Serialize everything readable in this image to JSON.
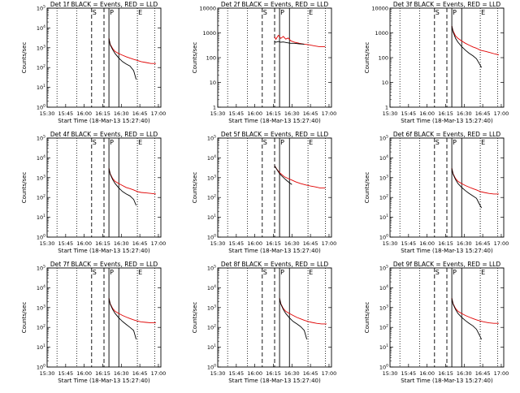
{
  "figure": {
    "xlabel": "Start Time (18-Mar-13 15:27:40)",
    "ylabel": "Counts/sec",
    "x_ticks": [
      "15:30",
      "15:45",
      "16:00",
      "16:15",
      "16:30",
      "16:45",
      "17:00"
    ],
    "x_tick_minutes": [
      0,
      15,
      30,
      45,
      60,
      75,
      90
    ],
    "colors": {
      "events": "#000000",
      "lld": "#e00000",
      "axes": "#000000"
    },
    "markers": {
      "S": "S",
      "P": "P",
      "E": "E"
    }
  },
  "chart_data": [
    {
      "type": "line",
      "title": "Det 1f BLACK = Events, RED = LLD",
      "y_scale": "log",
      "ylim": [
        1,
        100000
      ],
      "y_ticks": [
        1,
        10,
        100,
        1000,
        10000,
        100000
      ],
      "y_tick_labels": [
        "10^0",
        "10^1",
        "10^2",
        "10^3",
        "10^4",
        "10^5"
      ],
      "x_range_minutes": [
        0,
        92
      ],
      "lines": {
        "S_dashed": 36,
        "dashed": 46,
        "P_solid": 50,
        "solid": 58,
        "E_dotted": 73
      },
      "dotted_grid": [
        8,
        24,
        87
      ],
      "series": [
        {
          "name": "Events",
          "x": [
            50,
            51,
            53,
            55,
            58,
            61,
            64,
            67,
            70,
            72
          ],
          "y": [
            3000,
            1400,
            800,
            500,
            300,
            200,
            150,
            120,
            70,
            25
          ]
        },
        {
          "name": "LLD",
          "x": [
            50,
            51,
            53,
            55,
            58,
            61,
            64,
            67,
            70,
            73,
            76,
            80,
            84,
            88
          ],
          "y": [
            3000,
            1500,
            900,
            650,
            500,
            420,
            350,
            300,
            260,
            230,
            200,
            180,
            160,
            160
          ]
        }
      ]
    },
    {
      "type": "line",
      "title": "Det 2f BLACK = Events, RED = LLD",
      "y_scale": "log",
      "ylim": [
        1,
        10000
      ],
      "y_ticks": [
        1,
        10,
        100,
        1000,
        10000
      ],
      "y_tick_labels": [
        "1",
        "10",
        "100",
        "1000",
        "10000"
      ],
      "x_range_minutes": [
        0,
        92
      ],
      "lines": {
        "S_dashed": 36,
        "dashed": 46,
        "P_solid": 50,
        "solid": 58,
        "E_dotted": 73
      },
      "dotted_grid": [
        8,
        24,
        87
      ],
      "series": [
        {
          "name": "Events",
          "x": [
            46,
            47,
            49,
            51,
            53,
            56,
            59,
            62,
            66,
            70
          ],
          "y": [
            450,
            420,
            450,
            420,
            430,
            400,
            380,
            380,
            360,
            350
          ]
        },
        {
          "name": "LLD",
          "x": [
            46,
            47,
            49,
            51,
            53,
            55,
            57,
            59,
            62,
            66,
            70,
            74,
            78,
            82,
            87
          ],
          "y": [
            700,
            550,
            800,
            600,
            720,
            560,
            620,
            480,
            420,
            380,
            350,
            330,
            300,
            280,
            280
          ]
        }
      ]
    },
    {
      "type": "line",
      "title": "Det 3f BLACK = Events, RED = LLD",
      "y_scale": "log",
      "ylim": [
        1,
        10000
      ],
      "y_ticks": [
        1,
        10,
        100,
        1000,
        10000
      ],
      "y_tick_labels": [
        "1",
        "10",
        "100",
        "1000",
        "10000"
      ],
      "x_range_minutes": [
        0,
        92
      ],
      "lines": {
        "S_dashed": 36,
        "dashed": 46,
        "P_solid": 50,
        "solid": 58,
        "E_dotted": 73
      },
      "dotted_grid": [
        8,
        24,
        87
      ],
      "series": [
        {
          "name": "Events",
          "x": [
            50,
            51,
            53,
            55,
            58,
            61,
            64,
            67,
            70,
            72,
            74
          ],
          "y": [
            1900,
            1100,
            600,
            420,
            280,
            200,
            150,
            120,
            90,
            60,
            40
          ]
        },
        {
          "name": "LLD",
          "x": [
            50,
            51,
            53,
            55,
            58,
            61,
            64,
            67,
            70,
            73,
            77,
            81,
            85,
            88
          ],
          "y": [
            1900,
            1200,
            750,
            600,
            470,
            380,
            320,
            270,
            240,
            200,
            180,
            160,
            140,
            130
          ]
        }
      ]
    },
    {
      "type": "line",
      "title": "Det 4f BLACK = Events, RED = LLD",
      "y_scale": "log",
      "ylim": [
        1,
        100000
      ],
      "y_ticks": [
        1,
        10,
        100,
        1000,
        10000,
        100000
      ],
      "y_tick_labels": [
        "10^0",
        "10^1",
        "10^2",
        "10^3",
        "10^4",
        "10^5"
      ],
      "x_range_minutes": [
        0,
        92
      ],
      "lines": {
        "S_dashed": 36,
        "dashed": 46,
        "P_solid": 50,
        "solid": 58,
        "E_dotted": 73
      },
      "dotted_grid": [
        8,
        24,
        87
      ],
      "series": [
        {
          "name": "Events",
          "x": [
            50,
            51,
            53,
            55,
            58,
            61,
            64,
            67,
            70,
            72
          ],
          "y": [
            3000,
            1500,
            800,
            500,
            300,
            200,
            150,
            120,
            80,
            40
          ]
        },
        {
          "name": "LLD",
          "x": [
            50,
            51,
            53,
            55,
            58,
            61,
            64,
            67,
            70,
            73,
            76,
            80,
            84,
            88
          ],
          "y": [
            3000,
            1600,
            900,
            650,
            500,
            400,
            320,
            280,
            240,
            200,
            180,
            170,
            160,
            150
          ]
        }
      ]
    },
    {
      "type": "line",
      "title": "Det 5f BLACK = Events, RED = LLD",
      "y_scale": "log",
      "ylim": [
        1,
        100000
      ],
      "y_ticks": [
        1,
        10,
        100,
        1000,
        10000,
        100000
      ],
      "y_tick_labels": [
        "10^0",
        "10^1",
        "10^2",
        "10^3",
        "10^4",
        "10^5"
      ],
      "x_range_minutes": [
        0,
        92
      ],
      "lines": {
        "S_dashed": 36,
        "dashed": 46,
        "P_solid": 50,
        "solid": 58,
        "E_dotted": 73
      },
      "dotted_grid": [
        8,
        24,
        87
      ],
      "series": [
        {
          "name": "Events",
          "x": [
            46,
            48,
            50,
            52,
            54,
            56,
            58,
            60
          ],
          "y": [
            4000,
            2500,
            1600,
            1200,
            900,
            700,
            550,
            450
          ]
        },
        {
          "name": "LLD",
          "x": [
            46,
            48,
            50,
            52,
            54,
            57,
            60,
            63,
            67,
            71,
            75,
            79,
            83,
            87
          ],
          "y": [
            4000,
            2600,
            1800,
            1400,
            1100,
            900,
            750,
            620,
            500,
            430,
            380,
            340,
            300,
            300
          ]
        }
      ]
    },
    {
      "type": "line",
      "title": "Det 6f BLACK = Events, RED = LLD",
      "y_scale": "log",
      "ylim": [
        1,
        100000
      ],
      "y_ticks": [
        1,
        10,
        100,
        1000,
        10000,
        100000
      ],
      "y_tick_labels": [
        "10^0",
        "10^1",
        "10^2",
        "10^3",
        "10^4",
        "10^5"
      ],
      "x_range_minutes": [
        0,
        92
      ],
      "lines": {
        "S_dashed": 36,
        "dashed": 46,
        "P_solid": 50,
        "solid": 58,
        "E_dotted": 73
      },
      "dotted_grid": [
        8,
        24,
        87
      ],
      "series": [
        {
          "name": "Events",
          "x": [
            50,
            51,
            53,
            55,
            58,
            61,
            64,
            67,
            70,
            72,
            74
          ],
          "y": [
            3000,
            1500,
            800,
            500,
            320,
            220,
            160,
            120,
            90,
            50,
            30
          ]
        },
        {
          "name": "LLD",
          "x": [
            50,
            51,
            53,
            55,
            58,
            61,
            64,
            67,
            70,
            73,
            76,
            80,
            84,
            88
          ],
          "y": [
            3000,
            1600,
            900,
            650,
            500,
            400,
            330,
            280,
            240,
            200,
            180,
            160,
            150,
            150
          ]
        }
      ]
    },
    {
      "type": "line",
      "title": "Det 7f BLACK = Events, RED = LLD",
      "y_scale": "log",
      "ylim": [
        1,
        100000
      ],
      "y_ticks": [
        1,
        10,
        100,
        1000,
        10000,
        100000
      ],
      "y_tick_labels": [
        "10^0",
        "10^1",
        "10^2",
        "10^3",
        "10^4",
        "10^5"
      ],
      "x_range_minutes": [
        0,
        92
      ],
      "lines": {
        "S_dashed": 36,
        "dashed": 46,
        "P_solid": 50,
        "solid": 58,
        "E_dotted": 73
      },
      "dotted_grid": [
        8,
        24,
        87
      ],
      "series": [
        {
          "name": "Events",
          "x": [
            50,
            51,
            53,
            55,
            58,
            61,
            64,
            67,
            70,
            72
          ],
          "y": [
            3000,
            1500,
            800,
            500,
            300,
            200,
            140,
            100,
            70,
            25
          ]
        },
        {
          "name": "LLD",
          "x": [
            50,
            51,
            53,
            55,
            58,
            61,
            64,
            67,
            70,
            73,
            76,
            80,
            84,
            88
          ],
          "y": [
            3000,
            1600,
            900,
            650,
            500,
            400,
            330,
            280,
            240,
            210,
            190,
            180,
            170,
            170
          ]
        }
      ]
    },
    {
      "type": "line",
      "title": "Det 8f BLACK = Events, RED = LLD",
      "y_scale": "log",
      "ylim": [
        1,
        100000
      ],
      "y_ticks": [
        1,
        10,
        100,
        1000,
        10000,
        100000
      ],
      "y_tick_labels": [
        "10^0",
        "10^1",
        "10^2",
        "10^3",
        "10^4",
        "10^5"
      ],
      "x_range_minutes": [
        0,
        92
      ],
      "lines": {
        "S_dashed": 36,
        "dashed": 46,
        "P_solid": 50,
        "solid": 58,
        "E_dotted": 73
      },
      "dotted_grid": [
        8,
        24,
        87
      ],
      "series": [
        {
          "name": "Events",
          "x": [
            50,
            51,
            53,
            55,
            58,
            61,
            64,
            67,
            70,
            72
          ],
          "y": [
            3000,
            1500,
            800,
            500,
            300,
            200,
            150,
            110,
            70,
            25
          ]
        },
        {
          "name": "LLD",
          "x": [
            50,
            51,
            53,
            55,
            58,
            61,
            64,
            67,
            70,
            73,
            76,
            80,
            84,
            88
          ],
          "y": [
            3000,
            1600,
            900,
            650,
            500,
            400,
            320,
            270,
            230,
            200,
            180,
            160,
            150,
            150
          ]
        }
      ]
    },
    {
      "type": "line",
      "title": "Det 9f BLACK = Events, RED = LLD",
      "y_scale": "log",
      "ylim": [
        1,
        100000
      ],
      "y_ticks": [
        1,
        10,
        100,
        1000,
        10000,
        100000
      ],
      "y_tick_labels": [
        "10^0",
        "10^1",
        "10^2",
        "10^3",
        "10^4",
        "10^5"
      ],
      "x_range_minutes": [
        0,
        92
      ],
      "lines": {
        "S_dashed": 36,
        "dashed": 46,
        "P_solid": 50,
        "solid": 58,
        "E_dotted": 73
      },
      "dotted_grid": [
        8,
        24,
        87
      ],
      "series": [
        {
          "name": "Events",
          "x": [
            50,
            51,
            53,
            55,
            58,
            61,
            64,
            67,
            70,
            72,
            74
          ],
          "y": [
            3000,
            1500,
            800,
            500,
            320,
            220,
            160,
            120,
            80,
            45,
            25
          ]
        },
        {
          "name": "LLD",
          "x": [
            50,
            51,
            53,
            55,
            58,
            61,
            64,
            67,
            70,
            73,
            76,
            80,
            84,
            88
          ],
          "y": [
            3000,
            1600,
            900,
            650,
            500,
            400,
            330,
            280,
            240,
            210,
            190,
            170,
            160,
            160
          ]
        }
      ]
    }
  ]
}
